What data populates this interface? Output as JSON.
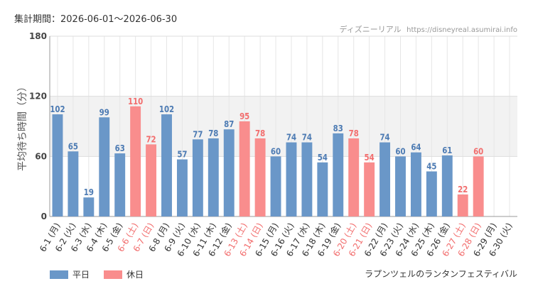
{
  "header": {
    "period_label": "集計期間：2026-06-01～2026-06-30",
    "site_name": "ディズニーリアル",
    "site_url": "https://disneyreal.asumirai.info"
  },
  "legend": {
    "weekday_label": "平日",
    "holiday_label": "休日"
  },
  "attraction_name": "ラプンツェルのランタンフェスティバル",
  "colors": {
    "weekday": "#6a97c8",
    "holiday": "#f98d8d",
    "weekday_text": "#4d7bb3",
    "holiday_text": "#f26d6d",
    "band": "#f2f2f2"
  },
  "chart_data": {
    "type": "bar",
    "ylabel": "平均待ち時間（分）",
    "ylim": [
      0,
      180
    ],
    "yticks": [
      0,
      60,
      120,
      180
    ],
    "highlight_band": [
      60,
      120
    ],
    "categories": [
      "6-1 (月)",
      "6-2 (火)",
      "6-3 (水)",
      "6-4 (木)",
      "6-5 (金)",
      "6-6 (土)",
      "6-7 (日)",
      "6-8 (月)",
      "6-9 (火)",
      "6-10 (水)",
      "6-11 (木)",
      "6-12 (金)",
      "6-13 (土)",
      "6-14 (日)",
      "6-15 (月)",
      "6-16 (火)",
      "6-17 (水)",
      "6-18 (木)",
      "6-19 (金)",
      "6-20 (土)",
      "6-21 (日)",
      "6-22 (月)",
      "6-23 (火)",
      "6-24 (水)",
      "6-25 (木)",
      "6-26 (金)",
      "6-27 (土)",
      "6-28 (日)",
      "6-29 (月)",
      "6-30 (火)"
    ],
    "values": [
      102,
      65,
      19,
      99,
      63,
      110,
      72,
      102,
      57,
      77,
      78,
      87,
      95,
      78,
      60,
      74,
      74,
      54,
      83,
      78,
      54,
      74,
      60,
      64,
      45,
      61,
      22,
      60,
      null,
      null
    ],
    "day_type": [
      "平日",
      "平日",
      "平日",
      "平日",
      "平日",
      "休日",
      "休日",
      "平日",
      "平日",
      "平日",
      "平日",
      "平日",
      "休日",
      "休日",
      "平日",
      "平日",
      "平日",
      "平日",
      "平日",
      "休日",
      "休日",
      "平日",
      "平日",
      "平日",
      "平日",
      "平日",
      "休日",
      "休日",
      "平日",
      "平日"
    ],
    "grid": true,
    "legend_position": "bottom-left"
  }
}
